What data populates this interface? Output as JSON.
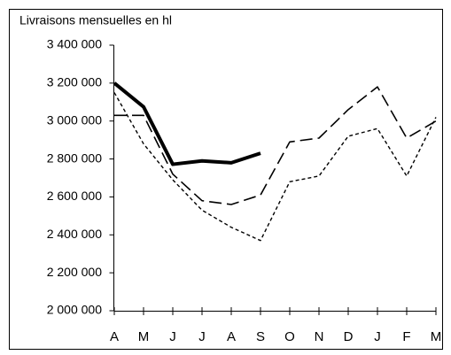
{
  "chart_data": {
    "type": "line",
    "title": "Livraisons mensuelles en hl",
    "categories": [
      "A",
      "M",
      "J",
      "J",
      "A",
      "S",
      "O",
      "N",
      "D",
      "J",
      "F",
      "M"
    ],
    "series": [
      {
        "color": "#000000",
        "style": "solid",
        "values": [
          3200000,
          3075000,
          2772000,
          2790000,
          2780000,
          2830000,
          null,
          null,
          null,
          null,
          null,
          null
        ]
      },
      {
        "color": "#000000",
        "style": "dashed",
        "values": [
          3030000,
          3030000,
          2720000,
          2580000,
          2560000,
          2610000,
          2890000,
          2910000,
          3060000,
          3180000,
          2910000,
          3000000
        ]
      },
      {
        "color": "#000000",
        "style": "dotted",
        "values": [
          3150000,
          2880000,
          2690000,
          2530000,
          2440000,
          2370000,
          2680000,
          2710000,
          2920000,
          2960000,
          2710000,
          3020000
        ]
      }
    ],
    "ylim": [
      2000000,
      3400000
    ],
    "yticks": [
      {
        "value": 2000000,
        "label": "2 000 000"
      },
      {
        "value": 2200000,
        "label": "2 200 000"
      },
      {
        "value": 2400000,
        "label": "2 400 000"
      },
      {
        "value": 2600000,
        "label": "2 600 000"
      },
      {
        "value": 2800000,
        "label": "2 800 000"
      },
      {
        "value": 3000000,
        "label": "3 000 000"
      },
      {
        "value": 3200000,
        "label": "3 200 000"
      },
      {
        "value": 3400000,
        "label": "3 400 000"
      }
    ],
    "grid": false
  }
}
